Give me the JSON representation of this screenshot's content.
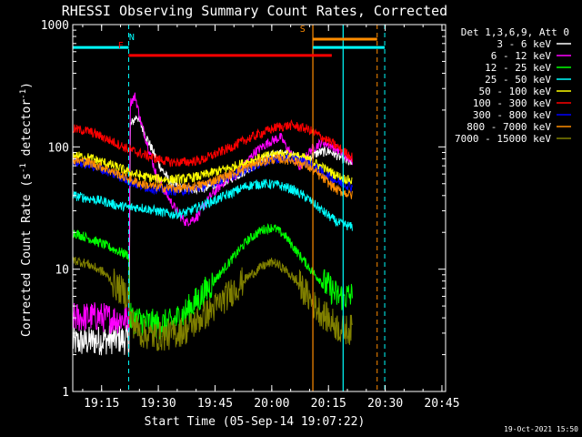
{
  "chart_data": {
    "type": "line",
    "title": "RHESSI Observing Summary Count Rates, Corrected",
    "xlabel": "Start Time (05-Sep-14 19:07:22)",
    "ylabel": "Corrected Count Rate (s⁻¹ detector⁻¹)",
    "ylabel_parts": {
      "main": "Corrected Count Rate (s",
      "exp1": "-1",
      "mid": " detector",
      "exp2": "-1",
      "end": ")"
    },
    "y_scale": "log",
    "ylim": [
      1,
      1000
    ],
    "xlim_minutes": [
      0,
      98.6
    ],
    "x_ticks": [
      {
        "label": "19:15",
        "minute": 7.63
      },
      {
        "label": "19:30",
        "minute": 22.63
      },
      {
        "label": "19:45",
        "minute": 37.63
      },
      {
        "label": "20:00",
        "minute": 52.63
      },
      {
        "label": "20:15",
        "minute": 67.63
      },
      {
        "label": "20:30",
        "minute": 82.63
      },
      {
        "label": "20:45",
        "minute": 97.63
      }
    ],
    "y_ticks": [
      {
        "label": "1",
        "value": 1
      },
      {
        "label": "10",
        "value": 10
      },
      {
        "label": "100",
        "value": 100
      },
      {
        "label": "1000",
        "value": 1000
      }
    ],
    "legend_title": "Det 1,3,6,9, Att 0",
    "legend_position": "right",
    "grid": false,
    "series": [
      {
        "name": "3 - 6 keV",
        "color": "#ffffff",
        "points": [
          [
            0,
            2.5
          ],
          [
            6,
            2.6
          ],
          [
            12,
            2.7
          ],
          [
            14.9,
            2.6
          ],
          [
            15.2,
            150
          ],
          [
            17,
            180
          ],
          [
            19,
            130
          ],
          [
            21,
            95
          ],
          [
            23,
            70
          ],
          [
            26,
            50
          ],
          [
            30,
            45
          ],
          [
            35,
            46
          ],
          [
            40,
            52
          ],
          [
            45,
            62
          ],
          [
            50,
            78
          ],
          [
            54,
            88
          ],
          [
            58,
            85
          ],
          [
            62,
            80
          ],
          [
            65,
            90
          ],
          [
            68,
            92
          ],
          [
            72,
            78
          ],
          [
            74,
            72
          ]
        ]
      },
      {
        "name": "6 - 12 keV",
        "color": "#ff00ff",
        "points": [
          [
            0,
            4
          ],
          [
            6,
            4.1
          ],
          [
            12,
            3.9
          ],
          [
            14.8,
            4
          ],
          [
            15.2,
            230
          ],
          [
            16.5,
            260
          ],
          [
            18,
            160
          ],
          [
            20,
            100
          ],
          [
            22,
            60
          ],
          [
            25,
            40
          ],
          [
            28,
            28
          ],
          [
            30,
            24
          ],
          [
            33,
            27
          ],
          [
            36,
            38
          ],
          [
            40,
            52
          ],
          [
            44,
            62
          ],
          [
            48,
            90
          ],
          [
            52,
            110
          ],
          [
            55,
            120
          ],
          [
            57,
            95
          ],
          [
            60,
            68
          ],
          [
            63,
            95
          ],
          [
            66,
            110
          ],
          [
            69,
            100
          ],
          [
            72,
            85
          ],
          [
            74,
            75
          ]
        ]
      },
      {
        "name": "12 - 25 keV",
        "color": "#00ff00",
        "points": [
          [
            0,
            20
          ],
          [
            4,
            18
          ],
          [
            8,
            16
          ],
          [
            12,
            14
          ],
          [
            14.8,
            13
          ],
          [
            15,
            4
          ],
          [
            18,
            3.8
          ],
          [
            22,
            3.5
          ],
          [
            26,
            3.6
          ],
          [
            30,
            4.5
          ],
          [
            34,
            6
          ],
          [
            38,
            8.5
          ],
          [
            42,
            12
          ],
          [
            46,
            17
          ],
          [
            50,
            21
          ],
          [
            53,
            22
          ],
          [
            56,
            19
          ],
          [
            60,
            13
          ],
          [
            64,
            9
          ],
          [
            68,
            7
          ],
          [
            70,
            6
          ],
          [
            74,
            6
          ]
        ]
      },
      {
        "name": "25 - 50 keV",
        "color": "#00ffff",
        "points": [
          [
            0,
            40
          ],
          [
            4,
            38
          ],
          [
            8,
            36
          ],
          [
            12,
            33
          ],
          [
            15,
            32
          ],
          [
            18,
            32
          ],
          [
            22,
            30
          ],
          [
            26,
            28
          ],
          [
            30,
            29
          ],
          [
            34,
            33
          ],
          [
            38,
            37
          ],
          [
            42,
            42
          ],
          [
            46,
            48
          ],
          [
            50,
            50
          ],
          [
            54,
            49
          ],
          [
            58,
            45
          ],
          [
            62,
            38
          ],
          [
            66,
            30
          ],
          [
            70,
            24
          ],
          [
            74,
            22
          ]
        ]
      },
      {
        "name": "50 - 100 keV",
        "color": "#ffff00",
        "points": [
          [
            0,
            85
          ],
          [
            4,
            82
          ],
          [
            8,
            75
          ],
          [
            12,
            68
          ],
          [
            15,
            62
          ],
          [
            18,
            58
          ],
          [
            22,
            55
          ],
          [
            26,
            54
          ],
          [
            30,
            55
          ],
          [
            34,
            58
          ],
          [
            38,
            63
          ],
          [
            42,
            68
          ],
          [
            46,
            75
          ],
          [
            50,
            82
          ],
          [
            54,
            88
          ],
          [
            58,
            86
          ],
          [
            62,
            80
          ],
          [
            66,
            68
          ],
          [
            70,
            58
          ],
          [
            74,
            52
          ]
        ]
      },
      {
        "name": "100 - 300 keV",
        "color": "#ff0000",
        "points": [
          [
            0,
            140
          ],
          [
            4,
            135
          ],
          [
            8,
            120
          ],
          [
            12,
            105
          ],
          [
            15,
            95
          ],
          [
            18,
            88
          ],
          [
            22,
            80
          ],
          [
            26,
            75
          ],
          [
            30,
            75
          ],
          [
            34,
            78
          ],
          [
            38,
            88
          ],
          [
            42,
            100
          ],
          [
            46,
            115
          ],
          [
            50,
            130
          ],
          [
            54,
            145
          ],
          [
            58,
            150
          ],
          [
            62,
            140
          ],
          [
            66,
            120
          ],
          [
            70,
            100
          ],
          [
            74,
            82
          ]
        ]
      },
      {
        "name": "300 - 800 keV",
        "color": "#0000ff",
        "points": [
          [
            0,
            75
          ],
          [
            4,
            72
          ],
          [
            8,
            65
          ],
          [
            12,
            58
          ],
          [
            15,
            52
          ],
          [
            18,
            48
          ],
          [
            22,
            45
          ],
          [
            26,
            44
          ],
          [
            30,
            44
          ],
          [
            34,
            47
          ],
          [
            38,
            52
          ],
          [
            42,
            58
          ],
          [
            46,
            66
          ],
          [
            50,
            74
          ],
          [
            54,
            80
          ],
          [
            58,
            80
          ],
          [
            62,
            74
          ],
          [
            66,
            62
          ],
          [
            70,
            52
          ],
          [
            74,
            47
          ]
        ]
      },
      {
        "name": "800 - 7000 keV",
        "color": "#ff8c00",
        "points": [
          [
            0,
            78
          ],
          [
            4,
            75
          ],
          [
            8,
            68
          ],
          [
            12,
            60
          ],
          [
            15,
            54
          ],
          [
            18,
            50
          ],
          [
            22,
            47
          ],
          [
            26,
            46
          ],
          [
            30,
            46
          ],
          [
            34,
            49
          ],
          [
            38,
            54
          ],
          [
            42,
            60
          ],
          [
            46,
            68
          ],
          [
            50,
            76
          ],
          [
            54,
            80
          ],
          [
            58,
            78
          ],
          [
            62,
            70
          ],
          [
            66,
            56
          ],
          [
            70,
            44
          ],
          [
            74,
            40
          ]
        ]
      },
      {
        "name": "7000 - 15000 keV",
        "color": "#808000",
        "points": [
          [
            0,
            12
          ],
          [
            4,
            11
          ],
          [
            8,
            9.5
          ],
          [
            12,
            7
          ],
          [
            14.8,
            6
          ],
          [
            15,
            4
          ],
          [
            18,
            3
          ],
          [
            22,
            2.8
          ],
          [
            26,
            2.9
          ],
          [
            30,
            3.2
          ],
          [
            34,
            4
          ],
          [
            38,
            5
          ],
          [
            42,
            6.5
          ],
          [
            46,
            8.5
          ],
          [
            50,
            10.5
          ],
          [
            53,
            11.5
          ],
          [
            56,
            10
          ],
          [
            60,
            7.5
          ],
          [
            64,
            5
          ],
          [
            68,
            3.8
          ],
          [
            71,
            3.2
          ],
          [
            74,
            3.2
          ]
        ]
      }
    ],
    "flags": [
      {
        "letter": "N",
        "name": "cyan-flag",
        "color": "#00ffff",
        "letter_minute": 15.6,
        "segments": [
          [
            0,
            14.8
          ],
          [
            63.5,
            82.5
          ]
        ],
        "level": 650,
        "dashed_lines": [
          14.8,
          82.5
        ]
      },
      {
        "letter": "F",
        "name": "red-flag",
        "color": "#ff0000",
        "letter_minute": 12.7,
        "segments": [
          [
            14.8,
            68.5
          ]
        ],
        "level": 560,
        "dashed_lines": []
      },
      {
        "letter": "S",
        "name": "orange-flag",
        "color": "#ff8c00",
        "letter_minute": 60.8,
        "segments": [
          [
            63.5,
            80.5
          ]
        ],
        "level": 760,
        "dashed_lines": [
          80.5
        ]
      }
    ],
    "vertical_lines": [
      {
        "minute": 63.5,
        "color": "#ff8c00",
        "style": "solid"
      },
      {
        "minute": 71.5,
        "color": "#00ffff",
        "style": "solid"
      }
    ],
    "footer_date": "19-Oct-2021 15:50"
  }
}
